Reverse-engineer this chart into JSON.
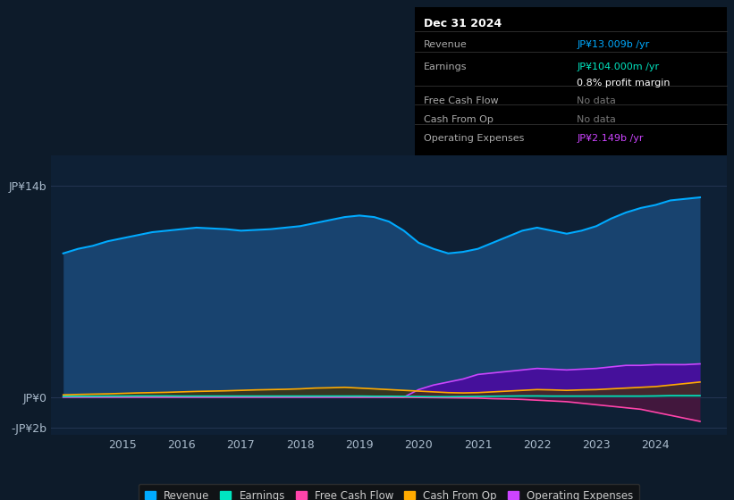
{
  "bg_color": "#0d1b2a",
  "plot_bg": "#0e2035",
  "x_years": [
    2014.0,
    2014.25,
    2014.5,
    2014.75,
    2015.0,
    2015.25,
    2015.5,
    2015.75,
    2016.0,
    2016.25,
    2016.5,
    2016.75,
    2017.0,
    2017.25,
    2017.5,
    2017.75,
    2018.0,
    2018.25,
    2018.5,
    2018.75,
    2019.0,
    2019.25,
    2019.5,
    2019.75,
    2020.0,
    2020.25,
    2020.5,
    2020.75,
    2021.0,
    2021.25,
    2021.5,
    2021.75,
    2022.0,
    2022.25,
    2022.5,
    2022.75,
    2023.0,
    2023.25,
    2023.5,
    2023.75,
    2024.0,
    2024.25,
    2024.5,
    2024.75
  ],
  "revenue": [
    9.5,
    9.8,
    10.0,
    10.3,
    10.5,
    10.7,
    10.9,
    11.0,
    11.1,
    11.2,
    11.15,
    11.1,
    11.0,
    11.05,
    11.1,
    11.2,
    11.3,
    11.5,
    11.7,
    11.9,
    12.0,
    11.9,
    11.6,
    11.0,
    10.2,
    9.8,
    9.5,
    9.6,
    9.8,
    10.2,
    10.6,
    11.0,
    11.2,
    11.0,
    10.8,
    11.0,
    11.3,
    11.8,
    12.2,
    12.5,
    12.7,
    13.0,
    13.1,
    13.2
  ],
  "earnings": [
    0.05,
    0.06,
    0.06,
    0.07,
    0.07,
    0.08,
    0.08,
    0.08,
    0.07,
    0.07,
    0.07,
    0.07,
    0.07,
    0.07,
    0.07,
    0.07,
    0.07,
    0.07,
    0.07,
    0.07,
    0.07,
    0.06,
    0.06,
    0.05,
    0.04,
    0.03,
    0.03,
    0.04,
    0.05,
    0.06,
    0.07,
    0.08,
    0.08,
    0.07,
    0.07,
    0.07,
    0.07,
    0.07,
    0.07,
    0.07,
    0.08,
    0.1,
    0.1,
    0.1
  ],
  "free_cash_flow": [
    0.02,
    0.02,
    0.02,
    0.02,
    0.02,
    0.02,
    0.02,
    0.02,
    0.02,
    0.02,
    0.02,
    0.02,
    0.02,
    0.02,
    0.02,
    0.02,
    0.02,
    0.02,
    0.02,
    0.02,
    0.01,
    0.01,
    0.0,
    -0.01,
    -0.02,
    -0.03,
    -0.04,
    -0.05,
    -0.06,
    -0.1,
    -0.12,
    -0.15,
    -0.2,
    -0.25,
    -0.3,
    -0.4,
    -0.5,
    -0.6,
    -0.7,
    -0.8,
    -1.0,
    -1.2,
    -1.4,
    -1.6
  ],
  "cash_from_op": [
    0.15,
    0.18,
    0.2,
    0.22,
    0.25,
    0.28,
    0.3,
    0.32,
    0.35,
    0.38,
    0.4,
    0.42,
    0.45,
    0.48,
    0.5,
    0.52,
    0.55,
    0.6,
    0.62,
    0.65,
    0.6,
    0.55,
    0.5,
    0.45,
    0.4,
    0.35,
    0.3,
    0.28,
    0.3,
    0.35,
    0.4,
    0.45,
    0.5,
    0.48,
    0.45,
    0.48,
    0.5,
    0.55,
    0.6,
    0.65,
    0.7,
    0.8,
    0.9,
    1.0
  ],
  "operating_expenses": [
    0.0,
    0.0,
    0.0,
    0.0,
    0.0,
    0.0,
    0.0,
    0.0,
    0.0,
    0.0,
    0.0,
    0.0,
    0.0,
    0.0,
    0.0,
    0.0,
    0.0,
    0.0,
    0.0,
    0.0,
    0.0,
    0.0,
    0.0,
    0.0,
    0.5,
    0.8,
    1.0,
    1.2,
    1.5,
    1.6,
    1.7,
    1.8,
    1.9,
    1.85,
    1.8,
    1.85,
    1.9,
    2.0,
    2.1,
    2.1,
    2.15,
    2.15,
    2.15,
    2.2
  ],
  "revenue_color": "#00aaff",
  "revenue_fill": "#1a4a7a",
  "earnings_color": "#00e5c0",
  "earnings_fill": "#004d44",
  "free_cash_flow_color": "#ff44aa",
  "free_cash_flow_fill": "#661144",
  "cash_from_op_color": "#ffaa00",
  "cash_from_op_fill": "#443300",
  "operating_expenses_color": "#cc44ff",
  "operating_expenses_fill": "#5500aa",
  "ylim": [
    -2.5,
    16.0
  ],
  "yticks": [
    -2,
    0,
    14
  ],
  "ytick_labels": [
    "-JP¥2b",
    "JP¥0",
    "JP¥14b"
  ],
  "xtick_labels": [
    "2015",
    "2016",
    "2017",
    "2018",
    "2019",
    "2020",
    "2021",
    "2022",
    "2023",
    "2024"
  ],
  "xtick_positions": [
    2015,
    2016,
    2017,
    2018,
    2019,
    2020,
    2021,
    2022,
    2023,
    2024
  ],
  "infobox_date": "Dec 31 2024",
  "infobox_rows": [
    {
      "label": "Revenue",
      "value": "JP¥13.009b /yr",
      "value_color": "#00aaff"
    },
    {
      "label": "Earnings",
      "value": "JP¥104.000m /yr",
      "value_color": "#00e5c0"
    },
    {
      "label": "",
      "value": "0.8% profit margin",
      "value_color": "#ffffff"
    },
    {
      "label": "Free Cash Flow",
      "value": "No data",
      "value_color": "#777777"
    },
    {
      "label": "Cash From Op",
      "value": "No data",
      "value_color": "#777777"
    },
    {
      "label": "Operating Expenses",
      "value": "JP¥2.149b /yr",
      "value_color": "#cc44ff"
    }
  ],
  "legend_items": [
    {
      "label": "Revenue",
      "color": "#00aaff"
    },
    {
      "label": "Earnings",
      "color": "#00e5c0"
    },
    {
      "label": "Free Cash Flow",
      "color": "#ff44aa"
    },
    {
      "label": "Cash From Op",
      "color": "#ffaa00"
    },
    {
      "label": "Operating Expenses",
      "color": "#cc44ff"
    }
  ]
}
